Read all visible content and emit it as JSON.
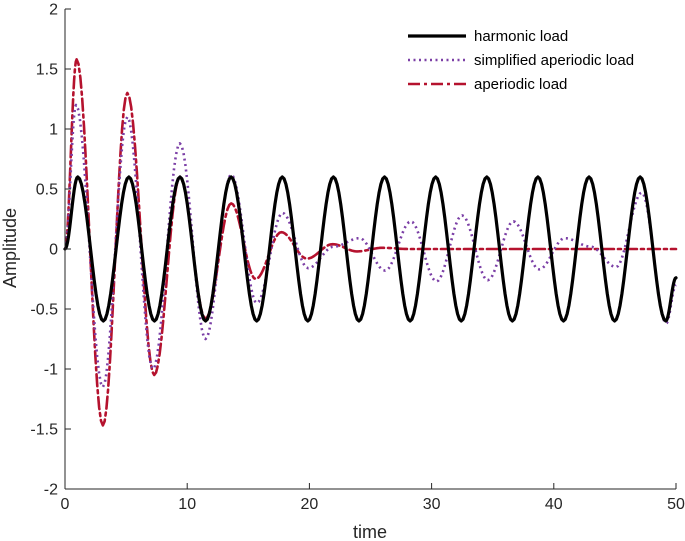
{
  "chart_data": {
    "type": "line",
    "title": "",
    "xlabel": "time",
    "ylabel": "Amplitude",
    "xlim": [
      0,
      50
    ],
    "ylim": [
      -2,
      2
    ],
    "xticks": [
      0,
      10,
      20,
      30,
      40,
      50
    ],
    "xtick_labels": [
      "0",
      "10",
      "20",
      "30",
      "40",
      "50"
    ],
    "yticks": [
      -2,
      -1.5,
      -1,
      -0.5,
      0,
      0.5,
      1,
      1.5,
      2
    ],
    "ytick_labels": [
      "-2",
      "-1.5",
      "-1",
      "-0.5",
      "0",
      "0.5",
      "1",
      "1.5",
      "2"
    ],
    "grid": false,
    "legend_position": "top-right",
    "series": [
      {
        "name": "harmonic load",
        "color": "#000000",
        "style": "solid",
        "x": [
          0,
          1.044,
          3.136,
          5.228,
          7.32,
          9.412,
          11.504,
          13.596,
          15.688,
          17.78,
          19.872,
          21.964,
          24.056,
          26.148,
          28.24,
          30.332,
          32.424,
          34.516,
          36.608,
          38.7,
          40.792,
          42.884,
          44.976,
          47.068,
          49.16,
          50
        ],
        "y": [
          0,
          0.6,
          -0.6,
          0.6,
          -0.6,
          0.6,
          -0.6,
          0.6,
          -0.6,
          0.6,
          -0.6,
          0.6,
          -0.6,
          0.6,
          -0.6,
          0.6,
          -0.6,
          0.6,
          -0.6,
          0.6,
          -0.6,
          0.6,
          -0.6,
          0.6,
          -0.6,
          -0.24
        ]
      },
      {
        "name": "simplified aperiodic load",
        "color": "#7B3FA6",
        "style": "dotted",
        "x": [
          0,
          0.9,
          3.1,
          5.1,
          7.2,
          9.4,
          11.5,
          13.6,
          15.7,
          17.8,
          19.9,
          22.0,
          24.1,
          26.2,
          28.3,
          30.4,
          32.5,
          34.6,
          36.7,
          38.8,
          40.9,
          43.0,
          45.1,
          47.2,
          49.2,
          50
        ],
        "y": [
          0,
          1.2,
          -1.15,
          1.1,
          -1.0,
          0.88,
          -0.75,
          0.62,
          -0.45,
          0.3,
          -0.16,
          0.02,
          0.09,
          -0.18,
          0.23,
          -0.27,
          0.28,
          -0.26,
          0.23,
          -0.17,
          0.09,
          0.02,
          -0.15,
          0.47,
          -0.62,
          -0.3
        ]
      },
      {
        "name": "aperiodic load",
        "color": "#B5122E",
        "style": "dashdot",
        "x": [
          0,
          0.95,
          3.1,
          5.1,
          7.3,
          9.4,
          11.5,
          13.6,
          15.6,
          17.7,
          19.8,
          21.9,
          23.9,
          26.0,
          28.1,
          30.2,
          32.3,
          34.4,
          36.5,
          38.6,
          40.7,
          42.8,
          44.9,
          47.0,
          49.1,
          50
        ],
        "y": [
          0,
          1.58,
          -1.47,
          1.3,
          -1.05,
          0.6,
          -0.58,
          0.38,
          -0.25,
          0.14,
          -0.08,
          0.04,
          -0.02,
          0.01,
          0,
          0,
          0,
          0,
          0,
          0,
          0,
          0,
          0,
          0,
          0,
          0
        ]
      }
    ]
  }
}
